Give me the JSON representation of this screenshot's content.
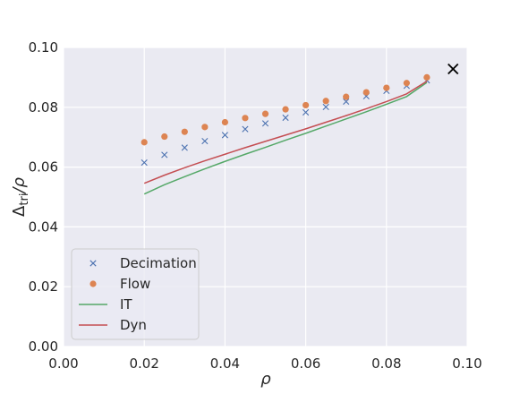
{
  "chart_data": {
    "type": "line",
    "xlabel": "ρ",
    "ylabel_main": "Δ",
    "ylabel_sub": "tri",
    "ylabel_tail": "/ρ",
    "xlim": [
      0,
      0.1
    ],
    "ylim": [
      0,
      0.1
    ],
    "x_ticks": [
      {
        "v": 0.0,
        "label": "0.00"
      },
      {
        "v": 0.02,
        "label": "0.02"
      },
      {
        "v": 0.04,
        "label": "0.04"
      },
      {
        "v": 0.06,
        "label": "0.06"
      },
      {
        "v": 0.08,
        "label": "0.08"
      },
      {
        "v": 0.1,
        "label": "0.10"
      }
    ],
    "y_ticks": [
      {
        "v": 0.0,
        "label": "0.00"
      },
      {
        "v": 0.02,
        "label": "0.02"
      },
      {
        "v": 0.04,
        "label": "0.04"
      },
      {
        "v": 0.06,
        "label": "0.06"
      },
      {
        "v": 0.08,
        "label": "0.08"
      },
      {
        "v": 0.1,
        "label": "0.10"
      }
    ],
    "grid": true,
    "legend_position": "lower-left",
    "series": [
      {
        "name": "Decimation",
        "kind": "scatter",
        "marker": "x",
        "color": "#4c72b0",
        "x": [
          0.02,
          0.025,
          0.03,
          0.035,
          0.04,
          0.045,
          0.05,
          0.055,
          0.06,
          0.065,
          0.07,
          0.075,
          0.08,
          0.085,
          0.09
        ],
        "y": [
          0.0615,
          0.0641,
          0.0665,
          0.0687,
          0.0707,
          0.0727,
          0.0746,
          0.0765,
          0.0783,
          0.0801,
          0.0819,
          0.0837,
          0.0855,
          0.0872,
          0.089
        ]
      },
      {
        "name": "Flow",
        "kind": "scatter",
        "marker": "o",
        "color": "#dd8452",
        "x": [
          0.02,
          0.025,
          0.03,
          0.035,
          0.04,
          0.045,
          0.05,
          0.055,
          0.06,
          0.065,
          0.07,
          0.075,
          0.08,
          0.085,
          0.09
        ],
        "y": [
          0.0683,
          0.0702,
          0.0718,
          0.0734,
          0.075,
          0.0764,
          0.0778,
          0.0793,
          0.0807,
          0.0821,
          0.0835,
          0.085,
          0.0865,
          0.0881,
          0.09
        ]
      },
      {
        "name": "IT",
        "kind": "line",
        "color": "#55a868",
        "x": [
          0.02,
          0.025,
          0.03,
          0.035,
          0.04,
          0.045,
          0.05,
          0.055,
          0.06,
          0.065,
          0.07,
          0.075,
          0.08,
          0.085,
          0.09
        ],
        "y": [
          0.051,
          0.0541,
          0.0568,
          0.0594,
          0.0619,
          0.0643,
          0.0666,
          0.069,
          0.0713,
          0.0737,
          0.0761,
          0.0785,
          0.081,
          0.0836,
          0.0883
        ]
      },
      {
        "name": "Dyn",
        "kind": "line",
        "color": "#c44e52",
        "x": [
          0.02,
          0.025,
          0.03,
          0.035,
          0.04,
          0.045,
          0.05,
          0.055,
          0.06,
          0.065,
          0.07,
          0.075,
          0.08,
          0.085,
          0.09
        ],
        "y": [
          0.0546,
          0.0573,
          0.0598,
          0.0621,
          0.0643,
          0.0665,
          0.0686,
          0.0707,
          0.0728,
          0.075,
          0.0772,
          0.0795,
          0.0819,
          0.0845,
          0.0887
        ]
      }
    ],
    "annotations": [
      {
        "kind": "cross-marker",
        "color": "#000000",
        "x": 0.0965,
        "y": 0.0928
      }
    ]
  }
}
